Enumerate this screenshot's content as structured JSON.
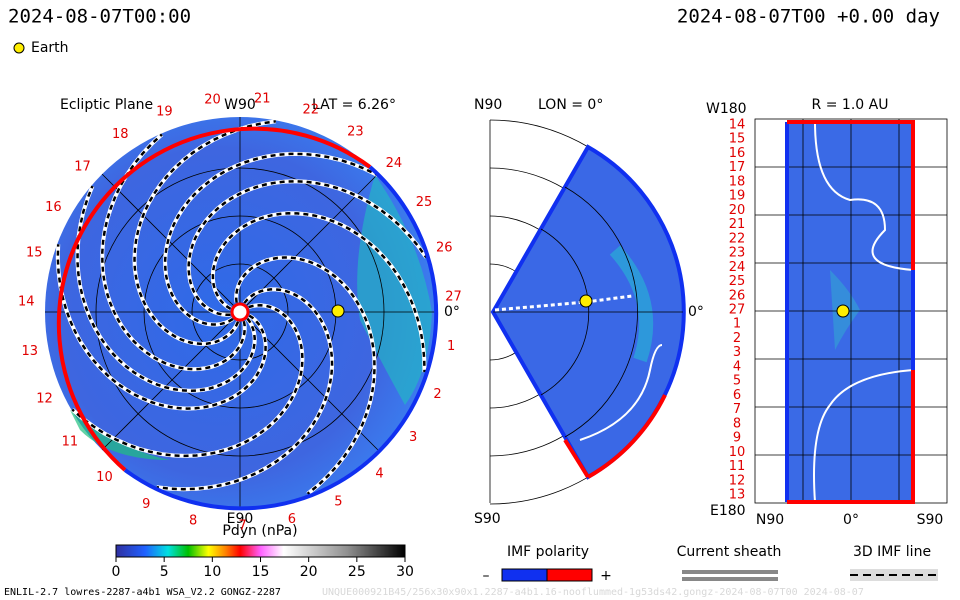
{
  "header": {
    "time": "2024-08-07T00:00",
    "time_offset": "2024-08-07T00 +0.00 day",
    "earth": "Earth"
  },
  "ecliptic": {
    "title": "Ecliptic Plane",
    "lat": "LAT = 6.26°",
    "top": "W90",
    "bottom": "E90",
    "right": "0°",
    "sectors": [
      19,
      20,
      21,
      22,
      23,
      24,
      25,
      26,
      27,
      1,
      2,
      3,
      4,
      5,
      6,
      7,
      8,
      9,
      10,
      11,
      12,
      13,
      14,
      15,
      16,
      17,
      18
    ]
  },
  "meridional": {
    "top": "N90",
    "lon": "LON = 0°",
    "bottom": "S90",
    "right": "0°"
  },
  "radial": {
    "top_left": "W180",
    "title": "R = 1.0 AU",
    "bottom_left": "E180",
    "bottom_labels": [
      "N90",
      "0°",
      "S90"
    ],
    "sectors": [
      14,
      15,
      16,
      17,
      18,
      19,
      20,
      21,
      22,
      23,
      24,
      25,
      26,
      27,
      1,
      2,
      3,
      4,
      5,
      6,
      7,
      8,
      9,
      10,
      11,
      12,
      13
    ]
  },
  "colorbar": {
    "label": "Pdyn (nPa)",
    "lim": [
      0,
      30
    ],
    "ticks": [
      0,
      5,
      10,
      15,
      20,
      25,
      30
    ]
  },
  "legend": {
    "polarity": "IMF polarity",
    "minus": "–",
    "plus": "+",
    "sheath": "Current sheath",
    "imf_line": "3D IMF line"
  },
  "footer": {
    "left": "ENLIL-2.7 lowres-2287-a4b1 WSA_V2.2 GONGZ-2287",
    "right": "UNQUE000921B45/256x30x90x1.2287-a4b1.16-nooflummed-1g53ds42.gongz-2024-08-07T00   2024-08-07"
  }
}
